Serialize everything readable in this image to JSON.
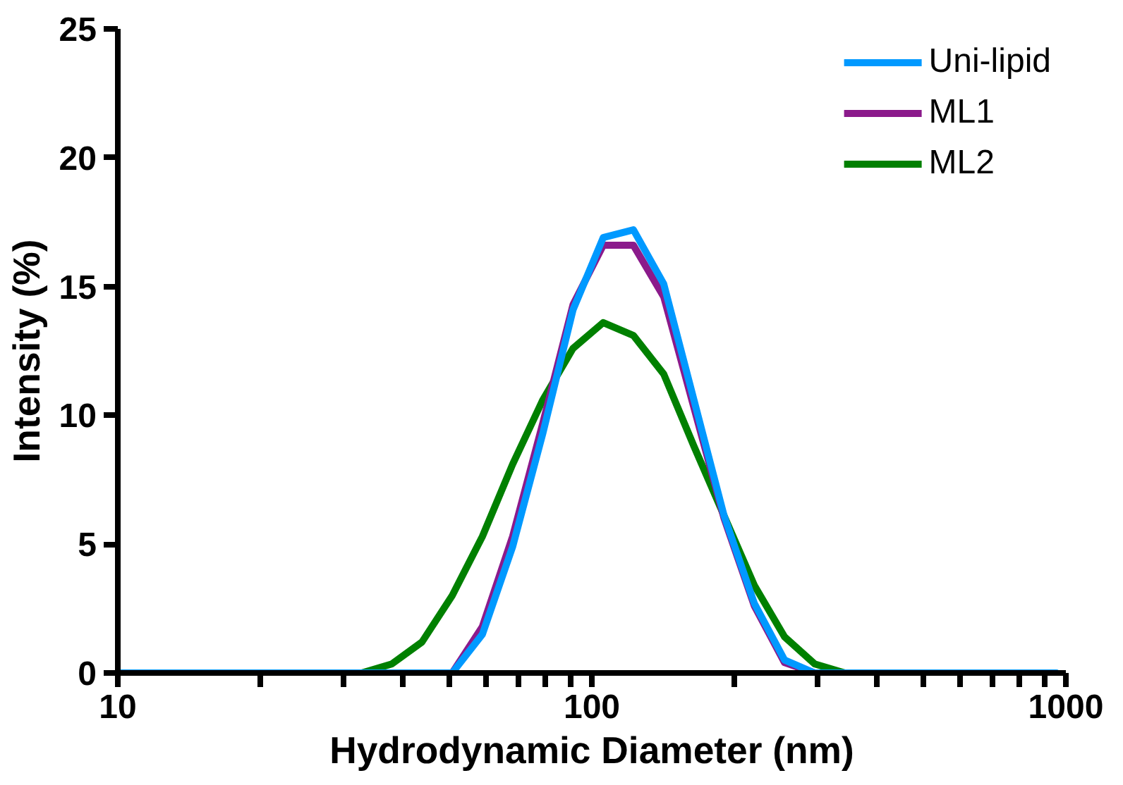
{
  "chart_data": {
    "type": "line",
    "xlabel": "Hydrodynamic Diameter (nm)",
    "ylabel": "Intensity (%)",
    "log": "x",
    "x": [
      10.1,
      11.7,
      13.54,
      15.69,
      18.17,
      21.04,
      24.36,
      28.21,
      32.67,
      37.84,
      43.82,
      50.75,
      58.77,
      68.06,
      78.82,
      91.28,
      105.7,
      122.4,
      141.8,
      164.2,
      190.1,
      220.2,
      255.0,
      295.3,
      342.0,
      396.1,
      458.7,
      531.2,
      615.1,
      712.4,
      825.0,
      955.4
    ],
    "series": [
      {
        "name": "Uni-lipid",
        "color": "#0099ff",
        "values": [
          0,
          0,
          0,
          0,
          0,
          0,
          0,
          0,
          0,
          0,
          0,
          0,
          1.5,
          4.9,
          9.3,
          14.1,
          16.9,
          17.2,
          15.1,
          10.6,
          6.1,
          2.7,
          0.5,
          0,
          0,
          0,
          0,
          0,
          0,
          0,
          0,
          0
        ]
      },
      {
        "name": "ML1",
        "color": "#8b1a8b",
        "values": [
          null,
          null,
          null,
          null,
          null,
          null,
          null,
          null,
          null,
          null,
          null,
          0,
          1.8,
          5.3,
          9.7,
          14.3,
          16.6,
          16.6,
          14.6,
          10.3,
          6.0,
          2.6,
          0.4,
          0,
          null,
          null,
          null,
          null,
          null,
          null,
          null,
          null
        ]
      },
      {
        "name": "ML2",
        "color": "#008000",
        "values": [
          null,
          null,
          null,
          null,
          null,
          null,
          null,
          0,
          0,
          0.35,
          1.2,
          3.0,
          5.3,
          8.1,
          10.6,
          12.6,
          13.6,
          13.1,
          11.6,
          8.8,
          6.1,
          3.4,
          1.4,
          0.35,
          0,
          0,
          null,
          null,
          null,
          null,
          null,
          null
        ]
      }
    ],
    "xlim": [
      10,
      1000
    ],
    "xticks": [
      10,
      {
        "value": 20,
        "label": null
      },
      {
        "value": 30,
        "label": null
      },
      {
        "value": 40,
        "label": null
      },
      {
        "value": 50,
        "label": null
      },
      {
        "value": 60,
        "label": null
      },
      {
        "value": 70,
        "label": null
      },
      {
        "value": 80,
        "label": null
      },
      {
        "value": 90,
        "label": null
      },
      100,
      {
        "value": 200,
        "label": null
      },
      {
        "value": 300,
        "label": null
      },
      {
        "value": 400,
        "label": null
      },
      {
        "value": 500,
        "label": null
      },
      {
        "value": 600,
        "label": null
      },
      {
        "value": 700,
        "label": null
      },
      {
        "value": 800,
        "label": null
      },
      {
        "value": 900,
        "label": null
      },
      1000
    ],
    "ylim": [
      0,
      25
    ],
    "yticks": [
      0,
      5,
      10,
      15,
      20,
      25
    ],
    "grid": false,
    "legend": "top right",
    "line_style": "solid",
    "marker": "none"
  }
}
